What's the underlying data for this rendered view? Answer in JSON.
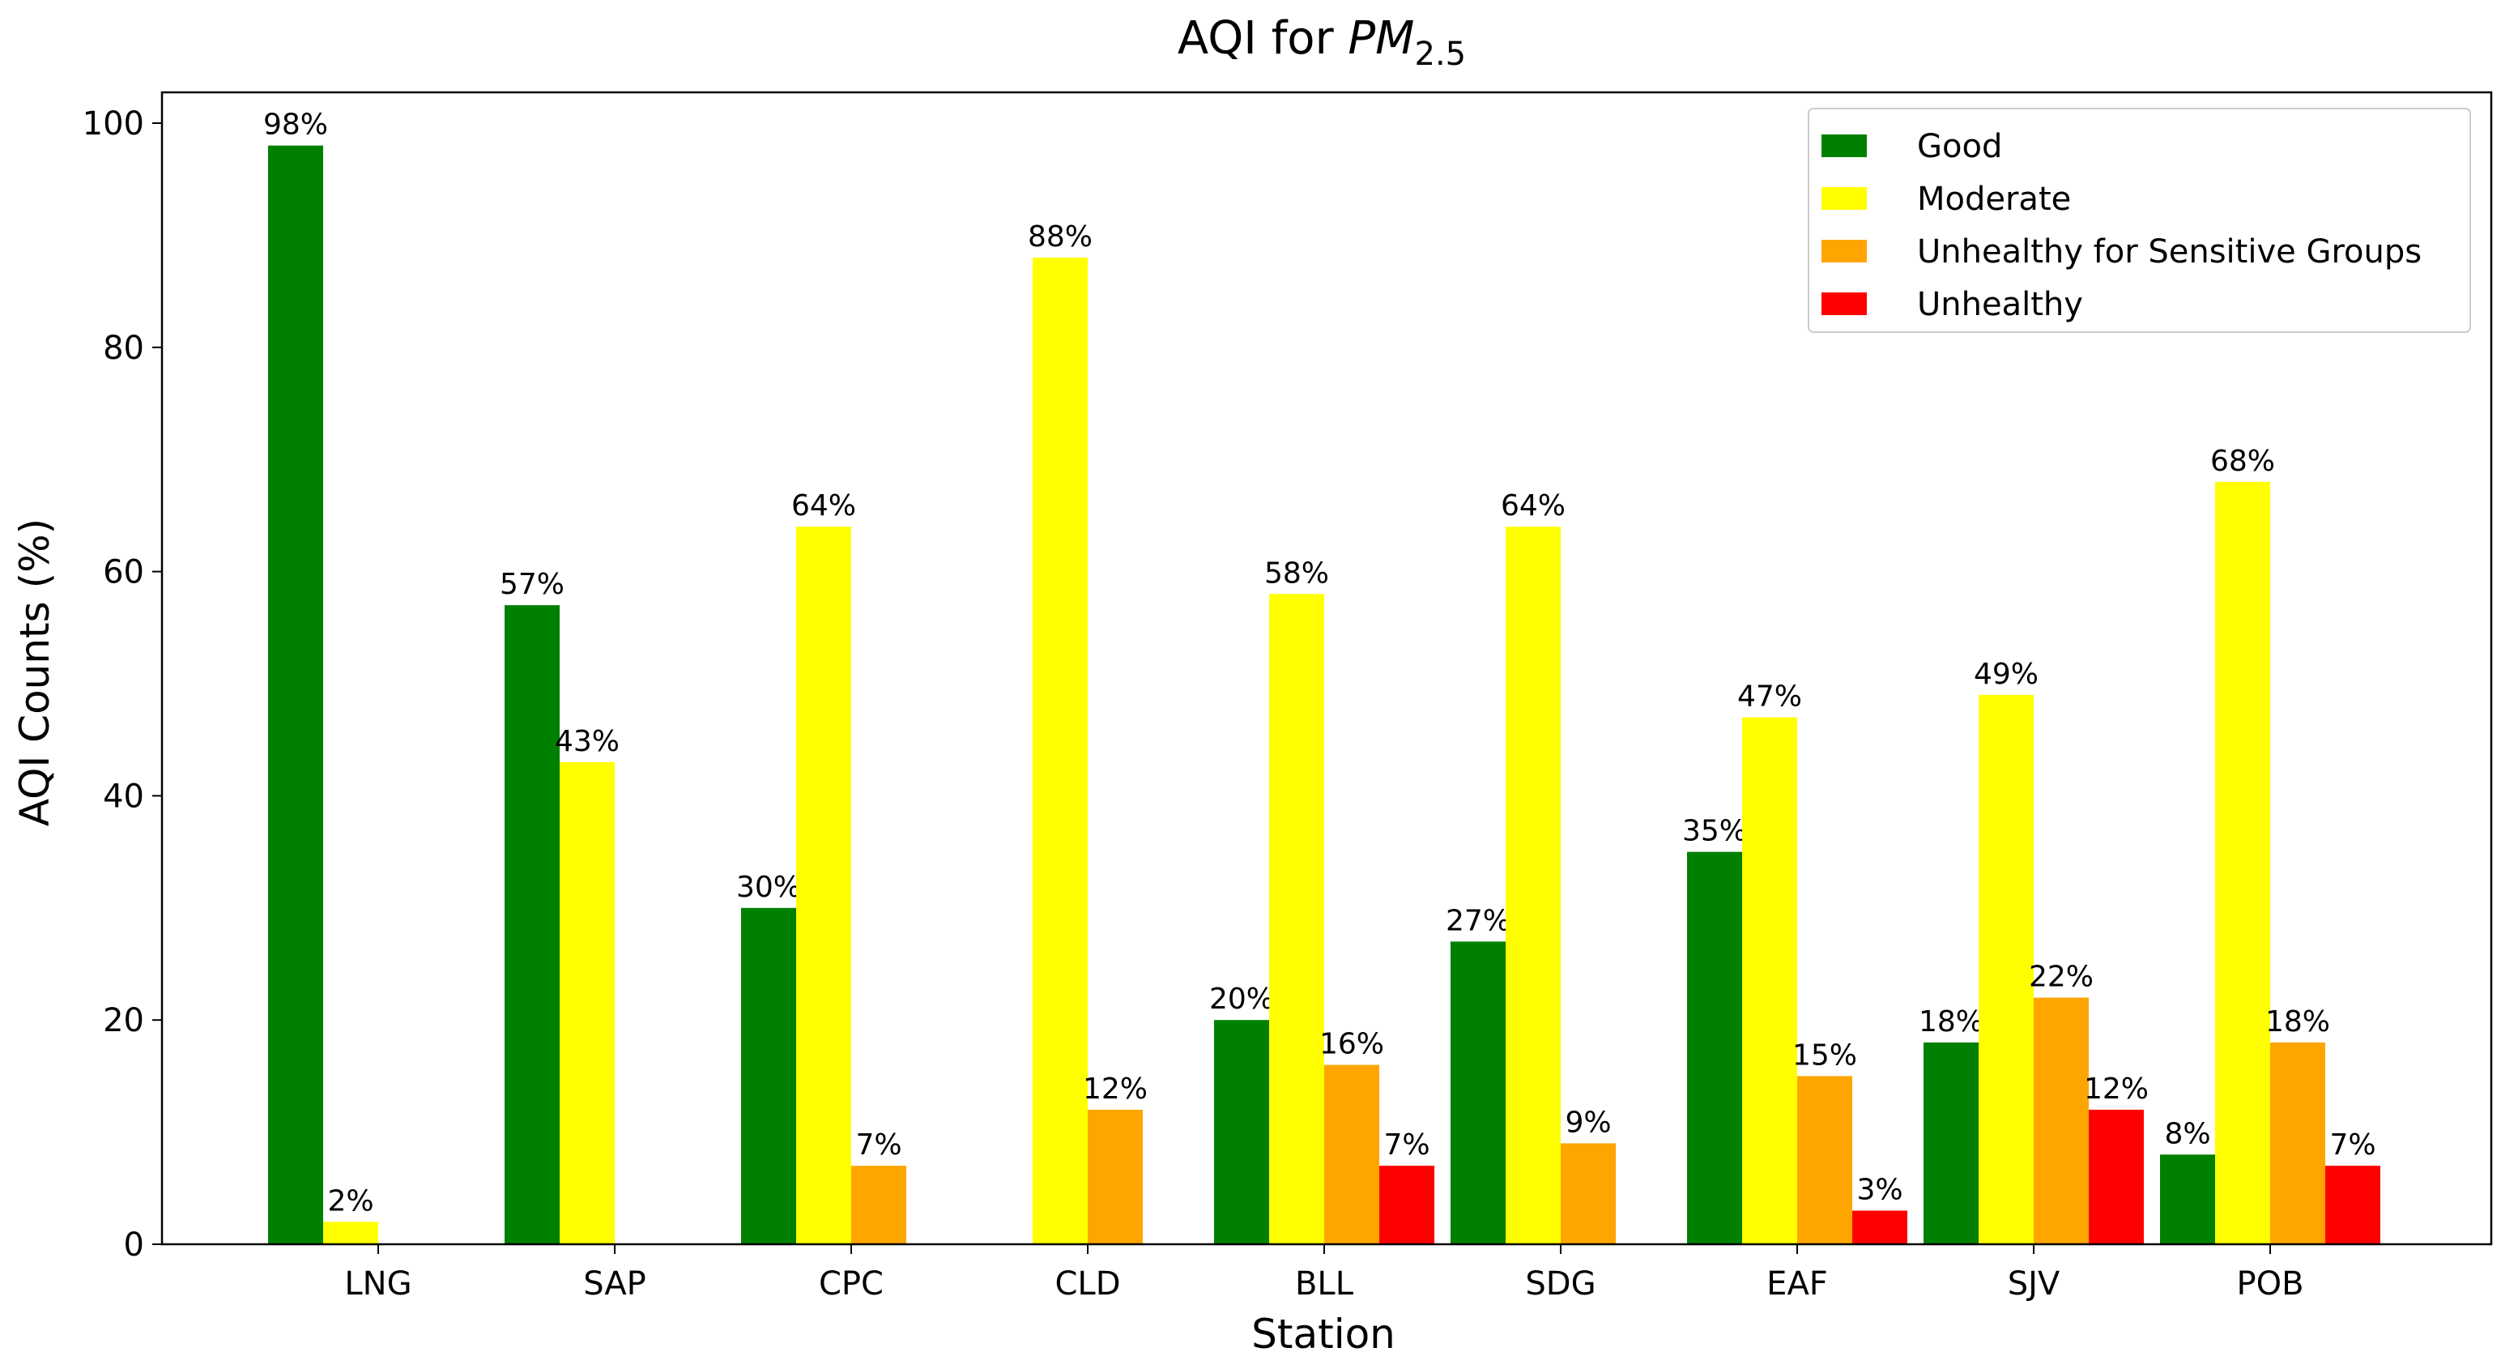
{
  "chart_data": {
    "type": "bar",
    "title": "AQI for ",
    "title_math": {
      "base": "PM",
      "subscript": "2.5"
    },
    "xlabel": "Station",
    "ylabel": "AQI Counts (%)",
    "ylim": [
      0,
      100
    ],
    "yticks": [
      0,
      20,
      40,
      60,
      80,
      100
    ],
    "categories": [
      "LNG",
      "SAP",
      "CPC",
      "CLD",
      "BLL",
      "SDG",
      "EAF",
      "SJV",
      "POB"
    ],
    "series": [
      {
        "name": "Good",
        "color": "#008000",
        "values": [
          98,
          57,
          30,
          null,
          20,
          27,
          35,
          18,
          8
        ]
      },
      {
        "name": "Moderate",
        "color": "#ffff00",
        "values": [
          2,
          43,
          64,
          88,
          58,
          64,
          47,
          49,
          68
        ]
      },
      {
        "name": "Unhealthy for Sensitive Groups",
        "color": "#ffa500",
        "values": [
          null,
          null,
          7,
          12,
          16,
          9,
          15,
          22,
          18
        ]
      },
      {
        "name": "Unhealthy",
        "color": "#ff0000",
        "values": [
          null,
          null,
          null,
          null,
          7,
          null,
          3,
          12,
          7
        ]
      }
    ],
    "label_suffix": "%",
    "legend_position": "top-right",
    "grid": false
  }
}
